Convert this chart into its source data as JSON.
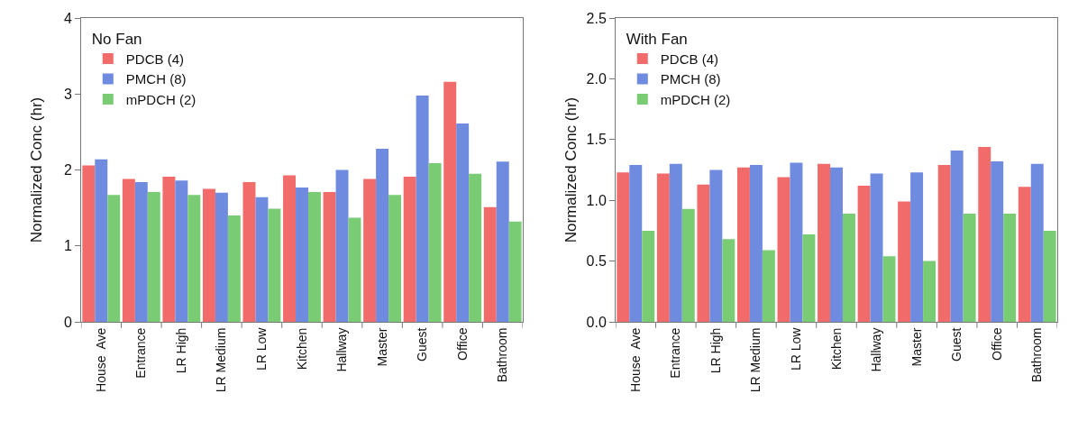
{
  "chart_data": [
    {
      "type": "bar",
      "legend_title": "No Fan",
      "ylabel": "Normalized Conc (hr)",
      "categories": [
        "House  Ave",
        "Entrance",
        "LR High",
        "LR Medium",
        "LR Low",
        "Kitchen",
        "Hallway",
        "Master",
        "Guest",
        "Office",
        "Bathroom"
      ],
      "series": [
        {
          "name": "PDCB (4)",
          "color": "#f26b6b",
          "values": [
            2.06,
            1.88,
            1.91,
            1.75,
            1.84,
            1.93,
            1.71,
            1.88,
            1.91,
            3.16,
            1.51
          ]
        },
        {
          "name": "PMCH (8)",
          "color": "#6f8be0",
          "values": [
            2.14,
            1.84,
            1.86,
            1.7,
            1.64,
            1.77,
            2.0,
            2.28,
            2.98,
            2.61,
            2.11
          ]
        },
        {
          "name": "mPDCH (2)",
          "color": "#7acc74",
          "values": [
            1.67,
            1.71,
            1.67,
            1.4,
            1.49,
            1.71,
            1.37,
            1.67,
            2.09,
            1.95,
            1.32
          ]
        }
      ],
      "ylim": [
        0,
        4
      ],
      "yticks": [
        0,
        1,
        2,
        3,
        4
      ],
      "grid": false,
      "legend": "top left"
    },
    {
      "type": "bar",
      "legend_title": "With Fan",
      "ylabel": "Normalized Conc (hr)",
      "categories": [
        "House  Ave",
        "Entrance",
        "LR High",
        "LR Medium",
        "LR Low",
        "Kitchen",
        "Hallway",
        "Master",
        "Guest",
        "Office",
        "Bathroom"
      ],
      "series": [
        {
          "name": "PDCB (4)",
          "color": "#f26b6b",
          "values": [
            1.23,
            1.22,
            1.13,
            1.27,
            1.19,
            1.3,
            1.12,
            0.99,
            1.29,
            1.44,
            1.11
          ]
        },
        {
          "name": "PMCH (8)",
          "color": "#6f8be0",
          "values": [
            1.29,
            1.3,
            1.25,
            1.29,
            1.31,
            1.27,
            1.22,
            1.23,
            1.41,
            1.32,
            1.3
          ]
        },
        {
          "name": "mPDCH (2)",
          "color": "#7acc74",
          "values": [
            0.75,
            0.93,
            0.68,
            0.59,
            0.72,
            0.89,
            0.54,
            0.5,
            0.89,
            0.89,
            0.75
          ]
        }
      ],
      "ylim": [
        0,
        2.5
      ],
      "yticks": [
        {
          "value": 0,
          "label": "0.0"
        },
        {
          "value": 0.5,
          "label": "0.5"
        },
        {
          "value": 1,
          "label": "1.0"
        },
        {
          "value": 1.5,
          "label": "1.5"
        },
        {
          "value": 2,
          "label": "2.0"
        },
        {
          "value": 2.5,
          "label": "2.5"
        }
      ],
      "grid": false,
      "legend": "top left"
    }
  ]
}
